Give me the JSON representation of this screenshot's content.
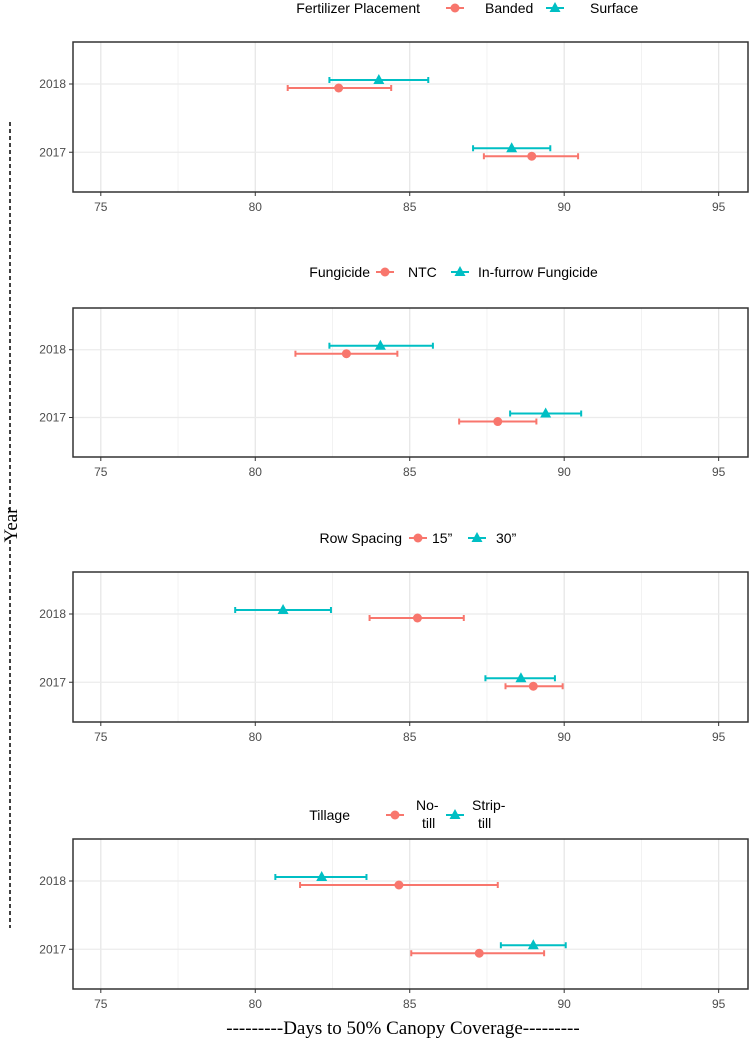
{
  "chart_data": [
    {
      "type": "scatter",
      "subtype": "point-range (horizontal error bars)",
      "legend_title": "Fertilizer Placement",
      "legend_placement": "top",
      "categories": [
        "2018",
        "2017"
      ],
      "xlim": [
        74.1,
        95.95
      ],
      "xticks": [
        "75",
        "80",
        "85",
        "90",
        "95"
      ],
      "grid": true,
      "series": [
        {
          "name": "Banded",
          "color": "#F8766D",
          "marker": "circle",
          "points": [
            {
              "year": "2018",
              "x": 82.7,
              "lo": 81.05,
              "hi": 84.4
            },
            {
              "year": "2017",
              "x": 88.95,
              "lo": 87.4,
              "hi": 90.45
            }
          ]
        },
        {
          "name": "Surface",
          "color": "#00BFC4",
          "marker": "triangle",
          "points": [
            {
              "year": "2018",
              "x": 84.0,
              "lo": 82.4,
              "hi": 85.6
            },
            {
              "year": "2017",
              "x": 88.3,
              "lo": 87.05,
              "hi": 89.55
            }
          ]
        }
      ]
    },
    {
      "type": "scatter",
      "subtype": "point-range (horizontal error bars)",
      "legend_title": "Fungicide",
      "legend_placement": "top",
      "categories": [
        "2018",
        "2017"
      ],
      "xlim": [
        74.1,
        95.95
      ],
      "xticks": [
        "75",
        "80",
        "85",
        "90",
        "95"
      ],
      "grid": true,
      "series": [
        {
          "name": "NTC",
          "color": "#F8766D",
          "marker": "circle",
          "points": [
            {
              "year": "2018",
              "x": 82.95,
              "lo": 81.3,
              "hi": 84.6
            },
            {
              "year": "2017",
              "x": 87.85,
              "lo": 86.6,
              "hi": 89.1
            }
          ]
        },
        {
          "name": "In-furrow Fungicide",
          "color": "#00BFC4",
          "marker": "triangle",
          "points": [
            {
              "year": "2018",
              "x": 84.05,
              "lo": 82.4,
              "hi": 85.75
            },
            {
              "year": "2017",
              "x": 89.4,
              "lo": 88.25,
              "hi": 90.55
            }
          ]
        }
      ]
    },
    {
      "type": "scatter",
      "subtype": "point-range (horizontal error bars)",
      "legend_title": "Row Spacing",
      "legend_placement": "top",
      "categories": [
        "2018",
        "2017"
      ],
      "xlim": [
        74.1,
        95.95
      ],
      "xticks": [
        "75",
        "80",
        "85",
        "90",
        "95"
      ],
      "grid": true,
      "series": [
        {
          "name": "15”",
          "color": "#F8766D",
          "marker": "circle",
          "points": [
            {
              "year": "2018",
              "x": 85.25,
              "lo": 83.7,
              "hi": 86.75
            },
            {
              "year": "2017",
              "x": 89.0,
              "lo": 88.1,
              "hi": 89.95
            }
          ]
        },
        {
          "name": "30”",
          "color": "#00BFC4",
          "marker": "triangle",
          "points": [
            {
              "year": "2018",
              "x": 80.9,
              "lo": 79.35,
              "hi": 82.45
            },
            {
              "year": "2017",
              "x": 88.6,
              "lo": 87.45,
              "hi": 89.7
            }
          ]
        }
      ]
    },
    {
      "type": "scatter",
      "subtype": "point-range (horizontal error bars)",
      "legend_title": "Tillage",
      "legend_placement": "top",
      "categories": [
        "2018",
        "2017"
      ],
      "xlim": [
        74.1,
        95.95
      ],
      "xticks": [
        "75",
        "80",
        "85",
        "90",
        "95"
      ],
      "grid": true,
      "series": [
        {
          "name": "No-till",
          "label_lines": [
            "No-",
            "till"
          ],
          "color": "#F8766D",
          "marker": "circle",
          "points": [
            {
              "year": "2018",
              "x": 84.65,
              "lo": 81.45,
              "hi": 87.85
            },
            {
              "year": "2017",
              "x": 87.25,
              "lo": 85.05,
              "hi": 89.35
            }
          ]
        },
        {
          "name": "Strip-till",
          "label_lines": [
            "Strip-",
            "till"
          ],
          "color": "#00BFC4",
          "marker": "triangle",
          "points": [
            {
              "year": "2018",
              "x": 82.15,
              "lo": 80.65,
              "hi": 83.6
            },
            {
              "year": "2017",
              "x": 89.0,
              "lo": 87.95,
              "hi": 90.05
            }
          ]
        }
      ]
    }
  ],
  "shared": {
    "ylabel": "Year",
    "xlabel": "---------Days to 50% Canopy Coverage---------"
  }
}
